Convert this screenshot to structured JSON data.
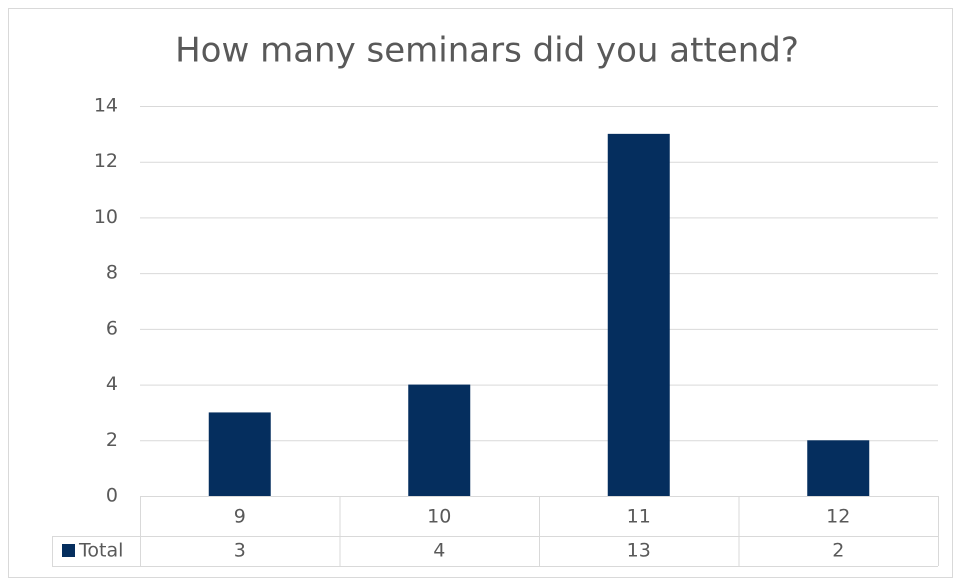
{
  "chart_data": {
    "type": "bar",
    "title": "How many seminars did you attend?",
    "categories": [
      "9",
      "10",
      "11",
      "12"
    ],
    "series": [
      {
        "name": "Total",
        "color": "#052e5e",
        "values": [
          3,
          4,
          13,
          2
        ]
      }
    ],
    "ylim": [
      0,
      14
    ],
    "yticks": [
      0,
      2,
      4,
      6,
      8,
      10,
      12,
      14
    ],
    "grid": true,
    "legend": "data-table"
  }
}
